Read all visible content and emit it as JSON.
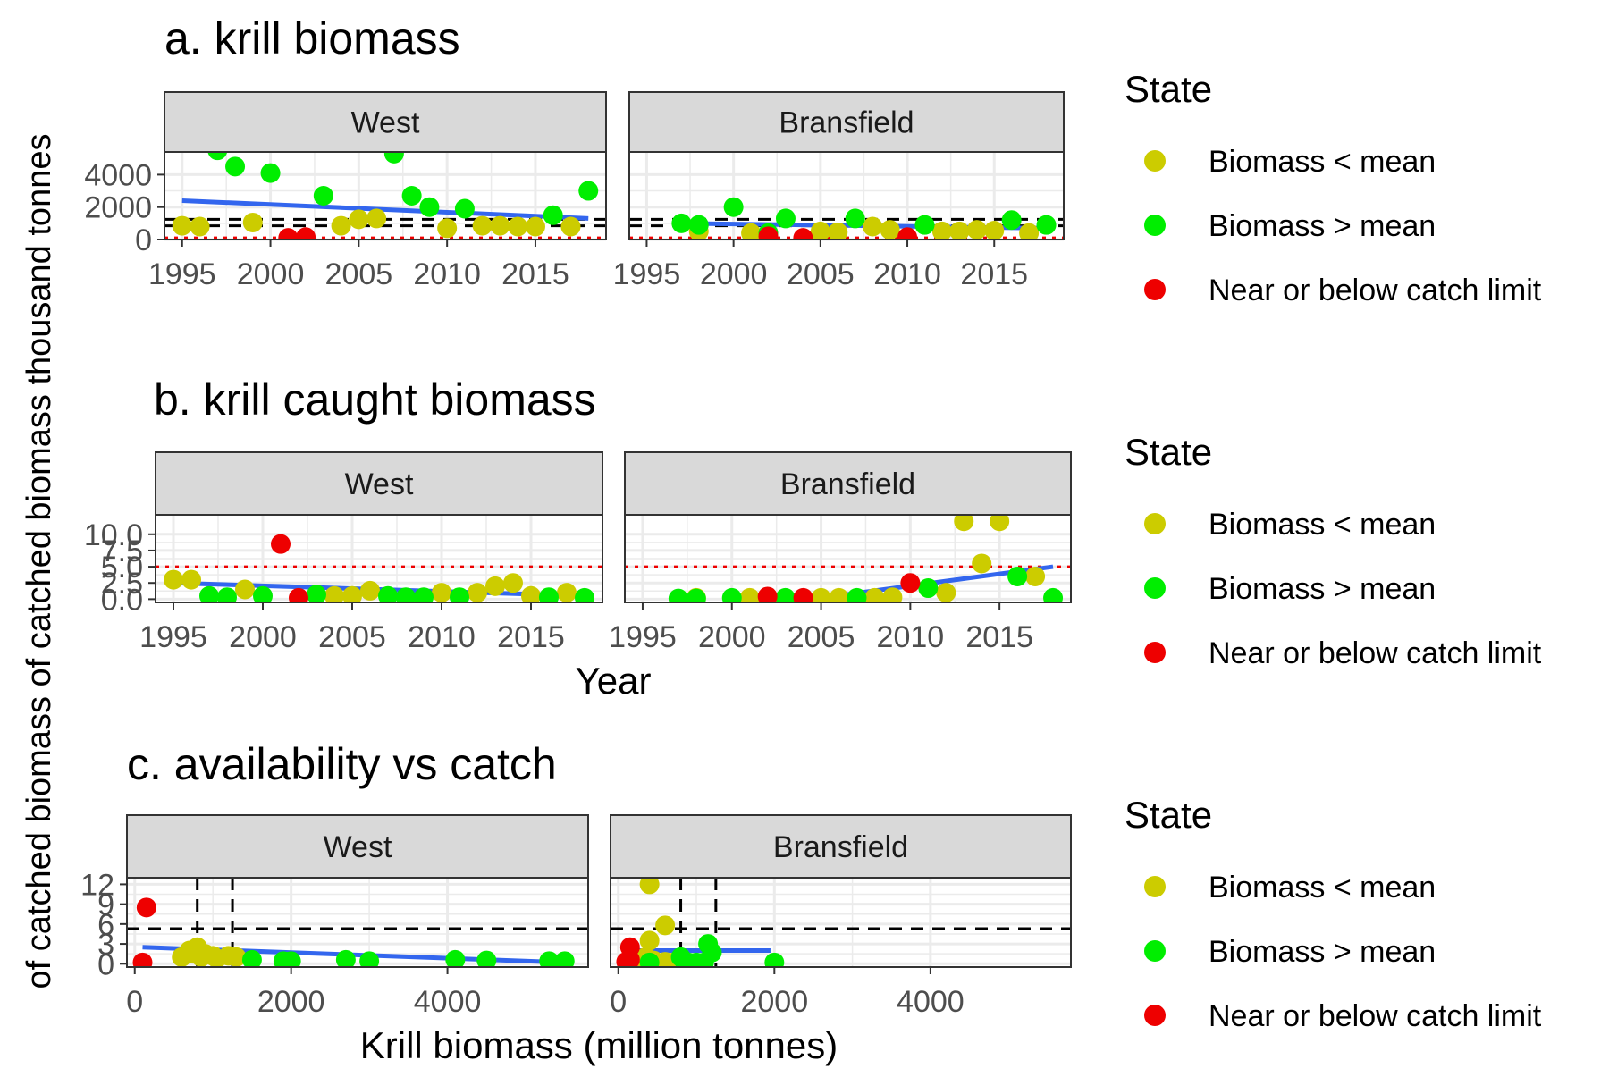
{
  "y_axis_label": "of catched biomass of catched biomass thousand tonnes",
  "chart_data": [
    {
      "type": "scatter",
      "title": "a. krill biomass",
      "xlabel": "",
      "ylabel": "",
      "panels": [
        "West",
        "Bransfield"
      ],
      "xlim": [
        1994,
        2019
      ],
      "ylim": [
        0,
        5400
      ],
      "x_ticks": [
        "1995",
        "2000",
        "2005",
        "2010",
        "2015"
      ],
      "y_ticks": [
        "0",
        "2000",
        "4000"
      ],
      "y_tick_values": [
        0,
        2000,
        4000
      ],
      "ref_lines": {
        "dashed": [
          850,
          1250
        ],
        "dotted": [
          100
        ]
      },
      "trend": {
        "West": [
          [
            1995,
            2400
          ],
          [
            2018,
            1300
          ]
        ],
        "Bransfield": [
          [
            1997,
            1000
          ],
          [
            2018,
            700
          ]
        ]
      },
      "series": [
        {
          "name": "Biomass < mean",
          "color": "#cccc00",
          "points": {
            "West": [
              [
                1995,
                850
              ],
              [
                1996,
                800
              ],
              [
                1999,
                1050
              ],
              [
                2004,
                850
              ],
              [
                2005,
                1250
              ],
              [
                2006,
                1300
              ],
              [
                2010,
                700
              ],
              [
                2012,
                850
              ],
              [
                2013,
                850
              ],
              [
                2014,
                800
              ],
              [
                2015,
                800
              ],
              [
                2017,
                800
              ]
            ],
            "Bransfield": [
              [
                1998,
                500
              ],
              [
                2001,
                400
              ],
              [
                2005,
                500
              ],
              [
                2006,
                450
              ],
              [
                2008,
                800
              ],
              [
                2009,
                600
              ],
              [
                2012,
                500
              ],
              [
                2013,
                500
              ],
              [
                2014,
                600
              ],
              [
                2015,
                550
              ],
              [
                2017,
                400
              ]
            ]
          }
        },
        {
          "name": "Biomass > mean",
          "color": "#00ee00",
          "points": {
            "West": [
              [
                1997,
                5500
              ],
              [
                1998,
                4500
              ],
              [
                2000,
                4100
              ],
              [
                2003,
                2700
              ],
              [
                2007,
                5300
              ],
              [
                2008,
                2700
              ],
              [
                2009,
                2000
              ],
              [
                2011,
                1900
              ],
              [
                2016,
                1500
              ],
              [
                2018,
                3000
              ]
            ],
            "Bransfield": [
              [
                1997,
                1000
              ],
              [
                1998,
                900
              ],
              [
                2000,
                2000
              ],
              [
                2002,
                400
              ],
              [
                2003,
                1300
              ],
              [
                2007,
                1300
              ],
              [
                2011,
                900
              ],
              [
                2016,
                1200
              ],
              [
                2018,
                900
              ]
            ]
          }
        },
        {
          "name": "Near or below catch limit",
          "color": "#ee0000",
          "points": {
            "West": [
              [
                2001,
                100
              ],
              [
                2002,
                150
              ]
            ],
            "Bransfield": [
              [
                2002,
                200
              ],
              [
                2004,
                100
              ],
              [
                2010,
                150
              ]
            ]
          }
        }
      ]
    },
    {
      "type": "scatter",
      "title": "b. krill caught biomass",
      "xlabel": "Year",
      "ylabel": "",
      "panels": [
        "West",
        "Bransfield"
      ],
      "xlim": [
        1994,
        2019
      ],
      "ylim": [
        -0.5,
        13
      ],
      "x_ticks": [
        "1995",
        "2000",
        "2005",
        "2010",
        "2015"
      ],
      "y_ticks": [
        "0.0",
        "2.5",
        "5.0",
        "7.5",
        "10.0"
      ],
      "y_tick_values": [
        0,
        2.5,
        5,
        7.5,
        10
      ],
      "ref_lines": {
        "dashed": [],
        "dotted": [
          5
        ]
      },
      "trend": {
        "West": [
          [
            1995,
            2.5
          ],
          [
            2018,
            0.5
          ]
        ],
        "Bransfield": [
          [
            2005,
            0.2
          ],
          [
            2018,
            5
          ]
        ]
      },
      "series": [
        {
          "name": "Biomass < mean",
          "color": "#cccc00",
          "points": {
            "West": [
              [
                1995,
                3
              ],
              [
                1996,
                3
              ],
              [
                1999,
                1.5
              ],
              [
                2004,
                0.5
              ],
              [
                2005,
                0.5
              ],
              [
                2006,
                1.3
              ],
              [
                2010,
                1
              ],
              [
                2012,
                1
              ],
              [
                2013,
                2
              ],
              [
                2014,
                2.5
              ],
              [
                2015,
                0.5
              ],
              [
                2017,
                1
              ]
            ],
            "Bransfield": [
              [
                1998,
                0.2
              ],
              [
                2001,
                0.2
              ],
              [
                2005,
                0.2
              ],
              [
                2006,
                0.2
              ],
              [
                2008,
                0.2
              ],
              [
                2009,
                0.3
              ],
              [
                2012,
                1
              ],
              [
                2013,
                12
              ],
              [
                2014,
                5.5
              ],
              [
                2015,
                12
              ],
              [
                2017,
                3.5
              ]
            ]
          }
        },
        {
          "name": "Biomass > mean",
          "color": "#00ee00",
          "points": {
            "West": [
              [
                1997,
                0.5
              ],
              [
                1998,
                0.3
              ],
              [
                2000,
                0.5
              ],
              [
                2003,
                0.7
              ],
              [
                2007,
                0.5
              ],
              [
                2008,
                0.3
              ],
              [
                2009,
                0.3
              ],
              [
                2011,
                0.3
              ],
              [
                2016,
                0.3
              ],
              [
                2018,
                0.2
              ]
            ],
            "Bransfield": [
              [
                1997,
                0.1
              ],
              [
                1998,
                0.1
              ],
              [
                2000,
                0.2
              ],
              [
                2003,
                0.2
              ],
              [
                2007,
                0.2
              ],
              [
                2011,
                1.7
              ],
              [
                2016,
                3.5
              ],
              [
                2018,
                0.2
              ]
            ]
          }
        },
        {
          "name": "Near or below catch limit",
          "color": "#ee0000",
          "points": {
            "West": [
              [
                2001,
                8.5
              ],
              [
                2002,
                0.2
              ]
            ],
            "Bransfield": [
              [
                2002,
                0.4
              ],
              [
                2004,
                0.2
              ],
              [
                2010,
                2.5
              ]
            ]
          }
        }
      ]
    },
    {
      "type": "scatter",
      "title": "c. availability vs catch",
      "xlabel": "Krill biomass (million tonnes)",
      "ylabel": "",
      "panels": [
        "West",
        "Bransfield"
      ],
      "xlim": [
        -100,
        5800
      ],
      "ylim": [
        -0.5,
        13
      ],
      "x_ticks": [
        "0",
        "2000",
        "4000"
      ],
      "x_tick_values": [
        0,
        2000,
        4000
      ],
      "y_ticks": [
        "0",
        "3",
        "6",
        "9",
        "12"
      ],
      "y_tick_values": [
        0,
        3,
        6,
        9,
        12
      ],
      "ref_lines": {
        "dashed_h": [
          5.3
        ],
        "dashed_v": [
          800,
          1250
        ]
      },
      "trend": {
        "West": [
          [
            100,
            2.5
          ],
          [
            5500,
            0.2
          ]
        ],
        "Bransfield": [
          [
            100,
            2
          ],
          [
            1950,
            2
          ]
        ]
      },
      "series": [
        {
          "name": "Biomass < mean",
          "color": "#cccc00",
          "points": {
            "West": [
              [
                600,
                1
              ],
              [
                700,
                2
              ],
              [
                750,
                1.5
              ],
              [
                800,
                2.5
              ],
              [
                850,
                1
              ],
              [
                900,
                1.5
              ],
              [
                1000,
                1.2
              ],
              [
                1050,
                0.8
              ],
              [
                1200,
                1.2
              ],
              [
                1300,
                1
              ]
            ],
            "Bransfield": [
              [
                300,
                0.5
              ],
              [
                350,
                1
              ],
              [
                400,
                3.5
              ],
              [
                400,
                12
              ],
              [
                450,
                0.5
              ],
              [
                500,
                0.2
              ],
              [
                600,
                0.3
              ],
              [
                600,
                5.8
              ],
              [
                700,
                0.2
              ],
              [
                800,
                0.2
              ]
            ]
          }
        },
        {
          "name": "Biomass > mean",
          "color": "#00ee00",
          "points": {
            "West": [
              [
                1500,
                0.6
              ],
              [
                1900,
                0.4
              ],
              [
                2000,
                0.4
              ],
              [
                2700,
                0.6
              ],
              [
                3000,
                0.4
              ],
              [
                4100,
                0.6
              ],
              [
                4500,
                0.5
              ],
              [
                5300,
                0.4
              ],
              [
                5500,
                0.4
              ]
            ],
            "Bransfield": [
              [
                400,
                0.2
              ],
              [
                800,
                1
              ],
              [
                850,
                0.3
              ],
              [
                900,
                0.2
              ],
              [
                1000,
                0.2
              ],
              [
                1100,
                0.2
              ],
              [
                1150,
                3
              ],
              [
                1200,
                1.7
              ],
              [
                2000,
                0.2
              ]
            ]
          }
        },
        {
          "name": "Near or below catch limit",
          "color": "#ee0000",
          "points": {
            "West": [
              [
                100,
                0.2
              ],
              [
                150,
                8.5
              ]
            ],
            "Bransfield": [
              [
                100,
                0.3
              ],
              [
                150,
                0.6
              ],
              [
                150,
                2.5
              ]
            ]
          }
        }
      ]
    }
  ],
  "legends": [
    {
      "title": "State",
      "entries": [
        {
          "label": "Biomass < mean",
          "color": "#cccc00"
        },
        {
          "label": "Biomass > mean",
          "color": "#00ee00"
        },
        {
          "label": "Near or below catch limit",
          "color": "#ee0000"
        }
      ]
    },
    {
      "title": "State",
      "entries": [
        {
          "label": "Biomass < mean",
          "color": "#cccc00"
        },
        {
          "label": "Biomass > mean",
          "color": "#00ee00"
        },
        {
          "label": "Near or below catch limit",
          "color": "#ee0000"
        }
      ]
    },
    {
      "title": "State",
      "entries": [
        {
          "label": "Biomass < mean",
          "color": "#cccc00"
        },
        {
          "label": "Biomass > mean",
          "color": "#00ee00"
        },
        {
          "label": "Near or below catch limit",
          "color": "#ee0000"
        }
      ]
    }
  ],
  "colors": {
    "trend": "#3366ee",
    "strip_fill": "#d9d9d9",
    "panel_border": "#333333",
    "grid": "#ebebeb",
    "dotted_line": "#ee0000",
    "dashed_line": "#000000"
  }
}
